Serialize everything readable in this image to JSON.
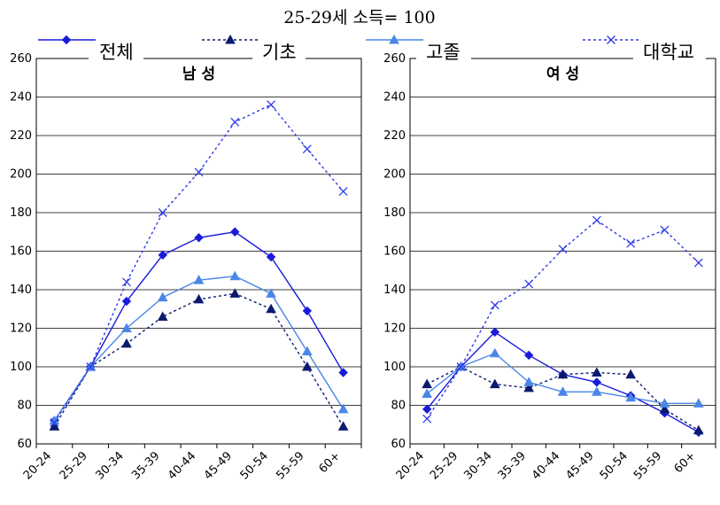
{
  "chart_data": {
    "type": "line",
    "title": "25-29세 소득= 100",
    "legend_position": "top",
    "colors": {
      "전체": "#1a1adb",
      "기초": "#0b1a6e",
      "고졸": "#4a86e8",
      "대학교": "#2e3ce8"
    },
    "legend": [
      {
        "name": "전체",
        "color": "#1a1adb",
        "marker": "diamond",
        "dash": "solid"
      },
      {
        "name": "기초",
        "color": "#0b1a6e",
        "marker": "triangle",
        "dash": "dotted"
      },
      {
        "name": "고졸",
        "color": "#4a86e8",
        "marker": "triangle",
        "dash": "solid"
      },
      {
        "name": "대학교",
        "color": "#2e3ce8",
        "marker": "x",
        "dash": "dotted"
      }
    ],
    "categories": [
      "20-24",
      "25-29",
      "30-34",
      "35-39",
      "40-44",
      "45-49",
      "50-54",
      "55-59",
      "60+"
    ],
    "ylim": [
      60,
      260
    ],
    "yticks": [
      60,
      80,
      100,
      120,
      140,
      160,
      180,
      200,
      220,
      240,
      260
    ],
    "grid": "horizontal",
    "panels": [
      {
        "title": "남 성",
        "series": [
          {
            "name": "전체",
            "values": [
              72,
              100,
              134,
              158,
              167,
              170,
              157,
              129,
              97
            ]
          },
          {
            "name": "기초",
            "values": [
              69,
              100,
              112,
              126,
              135,
              138,
              130,
              100,
              69
            ]
          },
          {
            "name": "고졸",
            "values": [
              72,
              100,
              120,
              136,
              145,
              147,
              138,
              108,
              78
            ]
          },
          {
            "name": "대학교",
            "values": [
              71,
              100,
              144,
              180,
              201,
              227,
              236,
              213,
              191
            ]
          }
        ]
      },
      {
        "title": "여 성",
        "series": [
          {
            "name": "전체",
            "values": [
              78,
              100,
              118,
              106,
              96,
              92,
              85,
              76,
              66
            ]
          },
          {
            "name": "기초",
            "values": [
              91,
              100,
              91,
              89,
              96,
              97,
              96,
              78,
              67
            ]
          },
          {
            "name": "고졸",
            "values": [
              86,
              100,
              107,
              92,
              87,
              87,
              84,
              81,
              81
            ]
          },
          {
            "name": "대학교",
            "values": [
              73,
              100,
              132,
              143,
              161,
              176,
              164,
              171,
              154
            ]
          }
        ]
      }
    ]
  }
}
